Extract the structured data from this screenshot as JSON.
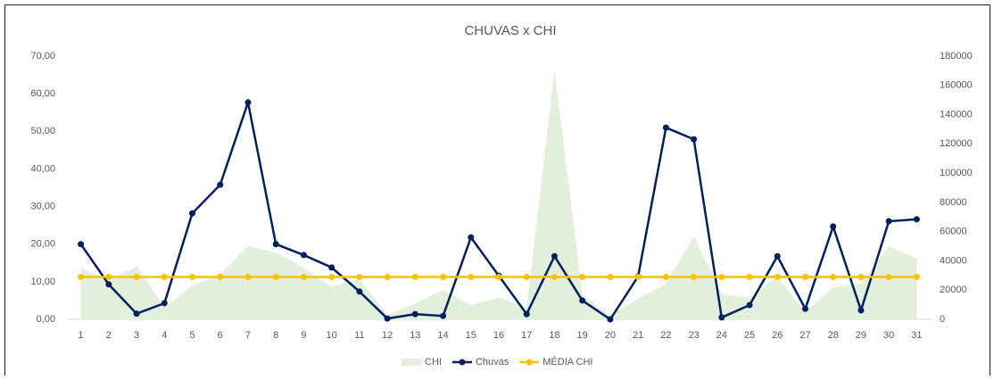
{
  "chart_data": {
    "type": "combo",
    "title": "CHUVAS x CHI",
    "categories": [
      "1",
      "2",
      "3",
      "4",
      "5",
      "6",
      "7",
      "8",
      "9",
      "10",
      "11",
      "12",
      "13",
      "14",
      "15",
      "16",
      "17",
      "18",
      "19",
      "20",
      "21",
      "22",
      "23",
      "24",
      "25",
      "26",
      "27",
      "28",
      "29",
      "30",
      "31"
    ],
    "series": [
      {
        "name": "CHI",
        "type": "area",
        "axis": "y2",
        "color": "#e2efda",
        "values": [
          35400,
          26200,
          36600,
          7900,
          23000,
          31000,
          50000,
          45800,
          35400,
          22000,
          27500,
          3000,
          11000,
          20000,
          9800,
          15000,
          8000,
          170000,
          17000,
          2500,
          14000,
          24400,
          56700,
          17000,
          15000,
          29000,
          5000,
          22000,
          24400,
          50000,
          41500
        ]
      },
      {
        "name": "Chuvas",
        "type": "line",
        "axis": "y",
        "color": "#002060",
        "values": [
          20,
          9.3,
          1.5,
          4.3,
          28.2,
          35.8,
          57.7,
          20,
          17.1,
          13.8,
          7.4,
          0.2,
          1.4,
          0.9,
          21.8,
          11.6,
          1.4,
          16.8,
          5,
          0,
          11.4,
          51,
          47.9,
          0.5,
          3.8,
          16.8,
          2.8,
          24.7,
          2.4,
          26.1,
          26.6
        ]
      },
      {
        "name": "MÉDIA CHI",
        "type": "line",
        "axis": "y2",
        "color": "#ffc000",
        "values": [
          29000,
          29000,
          29000,
          29000,
          29000,
          29000,
          29000,
          29000,
          29000,
          29000,
          29000,
          29000,
          29000,
          29000,
          29000,
          29000,
          29000,
          29000,
          29000,
          29000,
          29000,
          29000,
          29000,
          29000,
          29000,
          29000,
          29000,
          29000,
          29000,
          29000,
          29000
        ]
      }
    ],
    "ylim": [
      0,
      70
    ],
    "yticks": [
      {
        "value": 0,
        "label": "0,00"
      },
      {
        "value": 10,
        "label": "10,00"
      },
      {
        "value": 20,
        "label": "20,00"
      },
      {
        "value": 30,
        "label": "30,00"
      },
      {
        "value": 40,
        "label": "40,00"
      },
      {
        "value": 50,
        "label": "50,00"
      },
      {
        "value": 60,
        "label": "60,00"
      },
      {
        "value": 70,
        "label": "70,00"
      }
    ],
    "y2lim": [
      0,
      180000
    ],
    "y2ticks": [
      0,
      20000,
      40000,
      60000,
      80000,
      100000,
      120000,
      140000,
      160000,
      180000
    ],
    "grid": false,
    "legend": "bottom"
  }
}
